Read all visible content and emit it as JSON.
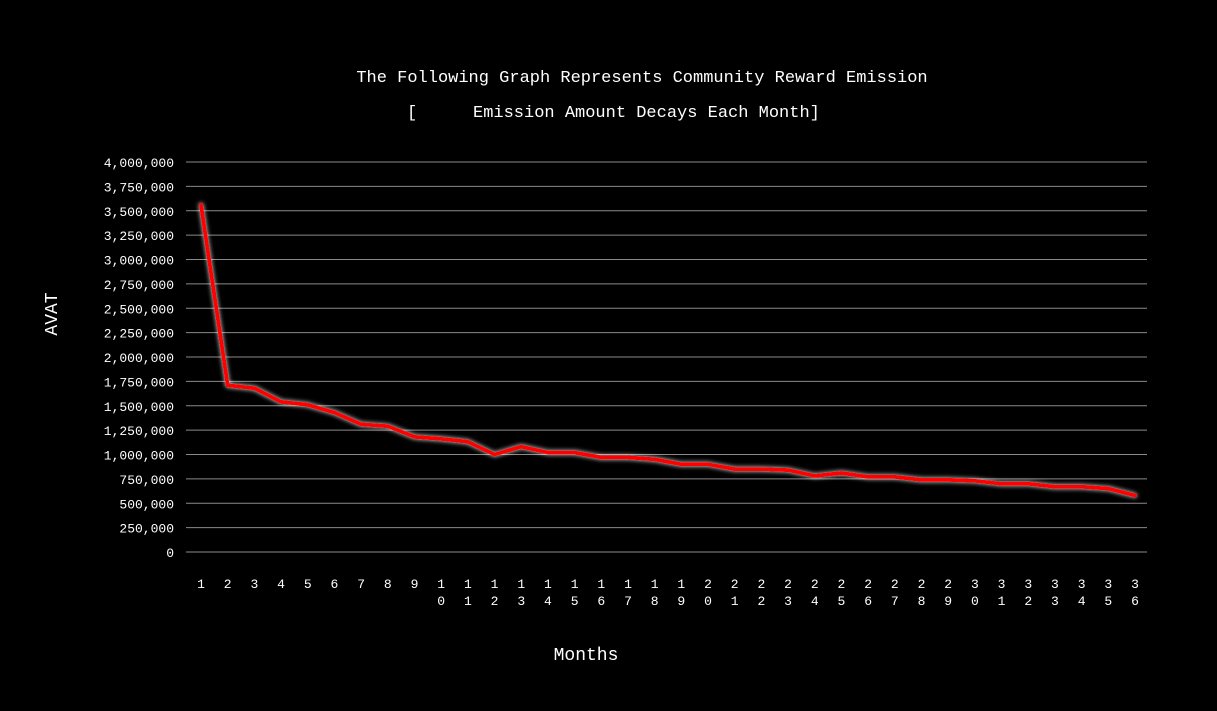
{
  "chart_data": {
    "type": "line",
    "title": "The Following Graph Represents Community Reward Emission",
    "legend": {
      "prefix": "[",
      "suffix": "]",
      "placement": "top-center"
    },
    "xlabel": "Months",
    "ylabel": "AVAT",
    "ylim": [
      0,
      4000000
    ],
    "yticks": [
      0,
      250000,
      500000,
      750000,
      1000000,
      1250000,
      1500000,
      1750000,
      2000000,
      2250000,
      2500000,
      2750000,
      3000000,
      3250000,
      3500000,
      3750000,
      4000000
    ],
    "ytick_labels": [
      "0",
      "250,000",
      "500,000",
      "750,000",
      "1,000,000",
      "1,250,000",
      "1,500,000",
      "1,750,000",
      "2,000,000",
      "2,250,000",
      "2,500,000",
      "2,750,000",
      "3,000,000",
      "3,250,000",
      "3,500,000",
      "3,750,000",
      "4,000,000"
    ],
    "grid": true,
    "categories": [
      "1",
      "2",
      "3",
      "4",
      "5",
      "6",
      "7",
      "8",
      "9",
      "10",
      "11",
      "12",
      "13",
      "14",
      "15",
      "16",
      "17",
      "18",
      "19",
      "20",
      "21",
      "22",
      "23",
      "24",
      "25",
      "26",
      "27",
      "28",
      "29",
      "30",
      "31",
      "32",
      "33",
      "34",
      "35",
      "36"
    ],
    "series": [
      {
        "name": "Emission Amount Decays Each Month",
        "color": "#ff0000",
        "values": [
          3560000,
          1710000,
          1680000,
          1540000,
          1510000,
          1430000,
          1310000,
          1290000,
          1180000,
          1160000,
          1130000,
          1000000,
          1080000,
          1020000,
          1020000,
          970000,
          970000,
          950000,
          900000,
          900000,
          850000,
          850000,
          840000,
          780000,
          810000,
          770000,
          770000,
          740000,
          740000,
          730000,
          700000,
          700000,
          670000,
          670000,
          650000,
          580000
        ]
      }
    ]
  }
}
